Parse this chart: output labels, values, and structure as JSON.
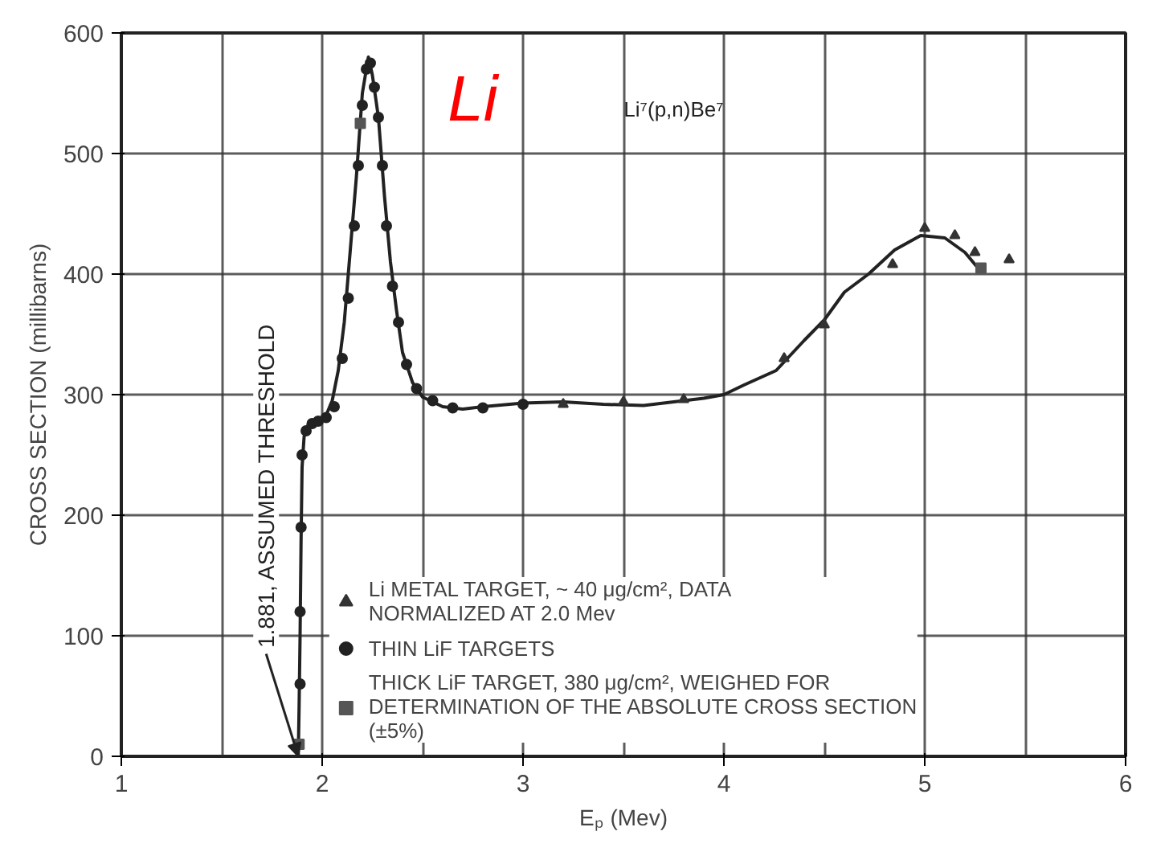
{
  "chart_data": {
    "type": "line",
    "xlabel": "Eₚ (Mev)",
    "ylabel": "CROSS SECTION (millibarns)",
    "xlim": [
      1,
      6
    ],
    "ylim": [
      0,
      600
    ],
    "xticks": [
      1,
      2,
      3,
      4,
      5,
      6
    ],
    "yticks": [
      0,
      100,
      200,
      300,
      400,
      500,
      600
    ],
    "grid": true,
    "legend": "bottom",
    "annotations": [
      "Li",
      "Li⁷(p,n)Be⁷",
      {
        "text": "1.881, ASSUMED THRESHOLD",
        "x": 1.881,
        "y": 0
      }
    ],
    "series": [
      {
        "color": "#222222",
        "marker": "none",
        "line_style": "solid",
        "x": [
          1.881,
          1.885,
          1.89,
          1.895,
          1.9,
          1.91,
          1.93,
          1.96,
          1.99,
          2.02,
          2.05,
          2.08,
          2.11,
          2.14,
          2.17,
          2.2,
          2.23,
          2.25,
          2.28,
          2.31,
          2.34,
          2.37,
          2.4,
          2.45,
          2.5,
          2.6,
          2.7,
          2.8,
          3.0,
          3.2,
          3.4,
          3.6,
          3.8,
          3.9,
          4.0,
          4.1,
          4.26,
          4.4,
          4.5,
          4.6,
          4.72,
          4.85,
          4.98,
          5.1,
          5.2,
          5.28
        ],
        "values": [
          0,
          40,
          100,
          180,
          240,
          265,
          275,
          278,
          280,
          283,
          295,
          320,
          360,
          420,
          480,
          550,
          580,
          565,
          530,
          465,
          410,
          370,
          335,
          310,
          298,
          290,
          288,
          290,
          293,
          294,
          292,
          291,
          295,
          297,
          300,
          308,
          320,
          345,
          362,
          385,
          400,
          420,
          432,
          430,
          418,
          402
        ]
      },
      {
        "type": "scatter",
        "name": "Li METAL TARGET, ~ 40 μg/cm², DATA NORMALIZED AT 2.0 Mev",
        "color": "#333333",
        "marker": "triangle",
        "x": [
          3.2,
          3.5,
          3.8,
          4.3,
          4.5,
          4.84,
          5.0,
          5.15,
          5.25,
          5.42
        ],
        "values": [
          292,
          294,
          296,
          330,
          358,
          408,
          438,
          432,
          418,
          412
        ]
      },
      {
        "type": "scatter",
        "name": "THIN LiF TARGETS",
        "color": "#222222",
        "marker": "circle",
        "x": [
          1.89,
          1.89,
          1.895,
          1.9,
          1.92,
          1.95,
          1.98,
          2.02,
          2.06,
          2.1,
          2.13,
          2.16,
          2.18,
          2.2,
          2.22,
          2.24,
          2.26,
          2.28,
          2.3,
          2.32,
          2.35,
          2.38,
          2.42,
          2.47,
          2.55,
          2.65,
          2.8,
          3.0
        ],
        "values": [
          60,
          120,
          190,
          250,
          270,
          276,
          278,
          281,
          290,
          330,
          380,
          440,
          490,
          540,
          570,
          575,
          555,
          530,
          490,
          440,
          390,
          360,
          325,
          305,
          295,
          289,
          289,
          292
        ]
      },
      {
        "type": "scatter",
        "name": "THICK LiF TARGET, 380 μg/cm², WEIGHED FOR DETERMINATION OF THE ABSOLUTE CROSS SECTION (±5%)",
        "color": "#555555",
        "marker": "square",
        "x": [
          1.885,
          2.19,
          5.28
        ],
        "values": [
          10,
          525,
          405
        ]
      }
    ]
  }
}
